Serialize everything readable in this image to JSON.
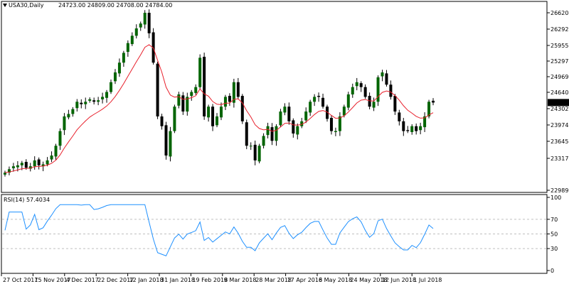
{
  "header": {
    "symbol_timeframe": "USA30,Daily",
    "ohlc": "24723.00 24809.00 24708.00 24784.00",
    "menu_icon": "triangle-down-icon"
  },
  "colors": {
    "bull_body": "#006400",
    "bear_body": "#000000",
    "wick": "#000000",
    "ma_line": "#e8202c",
    "rsi_line": "#1e90ff",
    "grid_dash": "#c0c0c0",
    "price_tag_bg": "#000000",
    "price_tag_text": "#ffffff"
  },
  "price_axis": {
    "ticks": [
      "26620.00",
      "26292.45",
      "25955.75",
      "25297.45",
      "24969.10",
      "24640.75",
      "24302.45",
      "23974.10",
      "23645.75",
      "23317.45",
      "22989.05"
    ],
    "current_price_tag": "24784.00"
  },
  "rsi_panel": {
    "label": "RSI(14) 57.4034",
    "ticks": [
      "100",
      "70",
      "50",
      "30",
      "0"
    ]
  },
  "time_axis": {
    "labels": [
      "27 Oct 2017",
      "15 Nov 2017",
      "4 Dec 2017",
      "22 Dec 2017",
      "12 Jan 2018",
      "31 Jan 2018",
      "19 Feb 2018",
      "9 Mar 2018",
      "28 Mar 2018",
      "17 Apr 2018",
      "6 May 2018",
      "24 May 2018",
      "12 Jun 2018",
      "1 Jul 2018"
    ]
  },
  "chart_data": [
    {
      "type": "candlestick",
      "title": "USA30,Daily",
      "ylim": [
        22989.05,
        26620.0
      ],
      "x": [
        "27 Oct 2017",
        "15 Nov 2017",
        "4 Dec 2017",
        "22 Dec 2017",
        "12 Jan 2018",
        "31 Jan 2018",
        "19 Feb 2018",
        "9 Mar 2018",
        "28 Mar 2018",
        "17 Apr 2018",
        "6 May 2018",
        "24 May 2018",
        "12 Jun 2018",
        "1 Jul 2018"
      ],
      "close_path": [
        23350,
        23420,
        23480,
        23500,
        23550,
        23450,
        23480,
        23600,
        23500,
        23520,
        23600,
        23700,
        23900,
        24200,
        24500,
        24550,
        24650,
        24800,
        24750,
        24800,
        24850,
        24800,
        24830,
        24900,
        25000,
        25200,
        25400,
        25600,
        25800,
        26000,
        26150,
        26300,
        26400,
        26620,
        26200,
        25600,
        24500,
        24300,
        23700,
        24200,
        24700,
        24950,
        24600,
        24900,
        25000,
        25100,
        25700,
        24500,
        24700,
        24300,
        24500,
        24700,
        24900,
        24800,
        25200,
        24900,
        24400,
        23900,
        23900,
        23600,
        23900,
        24100,
        24300,
        24000,
        24300,
        24600,
        24700,
        24400,
        24150,
        24300,
        24400,
        24600,
        24800,
        24900,
        24900,
        24700,
        24450,
        24200,
        24200,
        24500,
        24700,
        24950,
        25100,
        25200,
        25100,
        24900,
        24700,
        24800,
        25300,
        25400,
        25150,
        24900,
        24600,
        24400,
        24200,
        24200,
        24300,
        24200,
        24300,
        24500,
        24800,
        24784
      ],
      "last_close": 24784.0,
      "series": [
        {
          "name": "",
          "kind": "moving_average"
        }
      ]
    },
    {
      "type": "line",
      "title": "RSI(14) 57.4034",
      "ylim": [
        0,
        100
      ],
      "reference_lines": [
        70,
        50,
        30
      ],
      "last_value": 57.4034
    }
  ]
}
